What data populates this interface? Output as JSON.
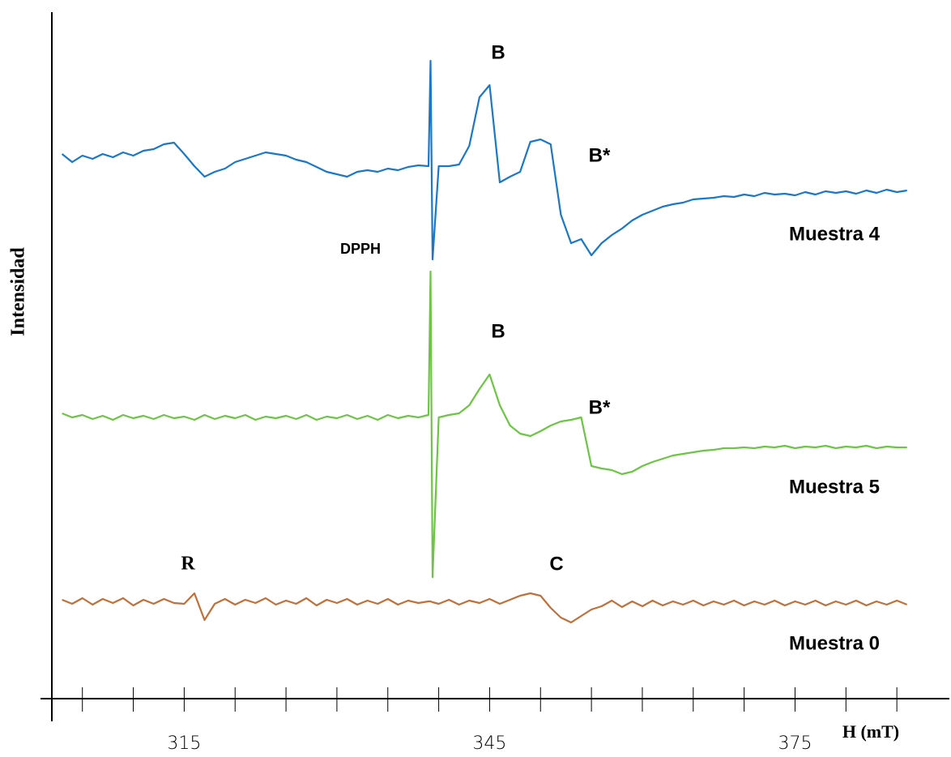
{
  "chart_data": {
    "type": "line",
    "x_label": "H (mT)",
    "y_label": "Intensidad",
    "xlim": [
      302,
      390
    ],
    "ylim": [
      0,
      850
    ],
    "xticks": [
      315,
      345,
      375
    ],
    "xminorticks": [
      305,
      310,
      315,
      320,
      325,
      330,
      335,
      340,
      345,
      350,
      355,
      360,
      365,
      370,
      375,
      380,
      385
    ],
    "annotations": [
      "B",
      "B*",
      "DPPH",
      "B",
      "B*",
      "R",
      "C"
    ],
    "x": [
      303,
      304,
      305,
      306,
      307,
      308,
      309,
      310,
      311,
      312,
      313,
      314,
      315,
      316,
      317,
      318,
      319,
      320,
      321,
      322,
      323,
      324,
      325,
      326,
      327,
      328,
      329,
      330,
      331,
      332,
      333,
      334,
      335,
      336,
      337,
      338,
      339,
      339.2,
      339.4,
      340,
      341,
      342,
      343,
      344,
      345,
      346,
      347,
      348,
      349,
      350,
      351,
      352,
      353,
      354,
      355,
      356,
      357,
      358,
      359,
      360,
      361,
      362,
      363,
      364,
      365,
      366,
      367,
      368,
      369,
      370,
      371,
      372,
      373,
      374,
      375,
      376,
      377,
      378,
      379,
      380,
      381,
      382,
      383,
      384,
      385,
      386
    ],
    "series": [
      {
        "name": "Muestra 4",
        "color": "#1a78c8",
        "values": [
          672,
          662,
          670,
          666,
          672,
          668,
          674,
          670,
          676,
          678,
          684,
          686,
          672,
          657,
          644,
          650,
          654,
          662,
          666,
          670,
          674,
          672,
          670,
          665,
          662,
          656,
          650,
          647,
          644,
          650,
          652,
          650,
          654,
          652,
          656,
          658,
          657,
          787,
          542,
          657,
          657,
          659,
          682,
          742,
          757,
          637,
          644,
          650,
          687,
          690,
          684,
          597,
          562,
          567,
          547,
          562,
          572,
          580,
          590,
          597,
          602,
          607,
          610,
          612,
          616,
          617,
          618,
          620,
          619,
          622,
          620,
          624,
          622,
          623,
          621,
          625,
          622,
          626,
          624,
          626,
          623,
          627,
          624,
          628,
          625,
          627
        ]
      },
      {
        "name": "Muestra 5",
        "color": "#6cc644",
        "values": [
          352,
          347,
          350,
          345,
          349,
          344,
          350,
          346,
          349,
          345,
          350,
          346,
          348,
          344,
          350,
          345,
          349,
          346,
          350,
          344,
          348,
          346,
          349,
          345,
          350,
          344,
          348,
          346,
          350,
          345,
          349,
          344,
          350,
          346,
          349,
          347,
          350,
          527,
          150,
          347,
          350,
          352,
          362,
          382,
          400,
          362,
          337,
          327,
          324,
          330,
          337,
          342,
          344,
          347,
          287,
          284,
          282,
          277,
          280,
          287,
          292,
          296,
          300,
          302,
          304,
          306,
          307,
          309,
          309,
          310,
          309,
          311,
          310,
          312,
          309,
          311,
          310,
          312,
          309,
          311,
          310,
          312,
          309,
          311,
          310,
          310
        ]
      },
      {
        "name": "Muestra 0",
        "color": "#c0703a",
        "values": [
          122,
          117,
          124,
          116,
          123,
          118,
          124,
          115,
          122,
          117,
          123,
          118,
          117,
          130,
          97,
          117,
          123,
          116,
          122,
          118,
          124,
          116,
          121,
          117,
          124,
          115,
          122,
          118,
          123,
          116,
          121,
          117,
          123,
          116,
          121,
          118,
          120,
          120,
          119,
          117,
          122,
          116,
          121,
          118,
          123,
          117,
          122,
          127,
          130,
          127,
          112,
          100,
          94,
          102,
          110,
          114,
          121,
          113,
          120,
          114,
          121,
          115,
          120,
          116,
          121,
          115,
          120,
          116,
          121,
          115,
          120,
          116,
          121,
          115,
          120,
          116,
          121,
          115,
          120,
          116,
          121,
          115,
          120,
          116,
          121,
          116
        ]
      }
    ]
  }
}
